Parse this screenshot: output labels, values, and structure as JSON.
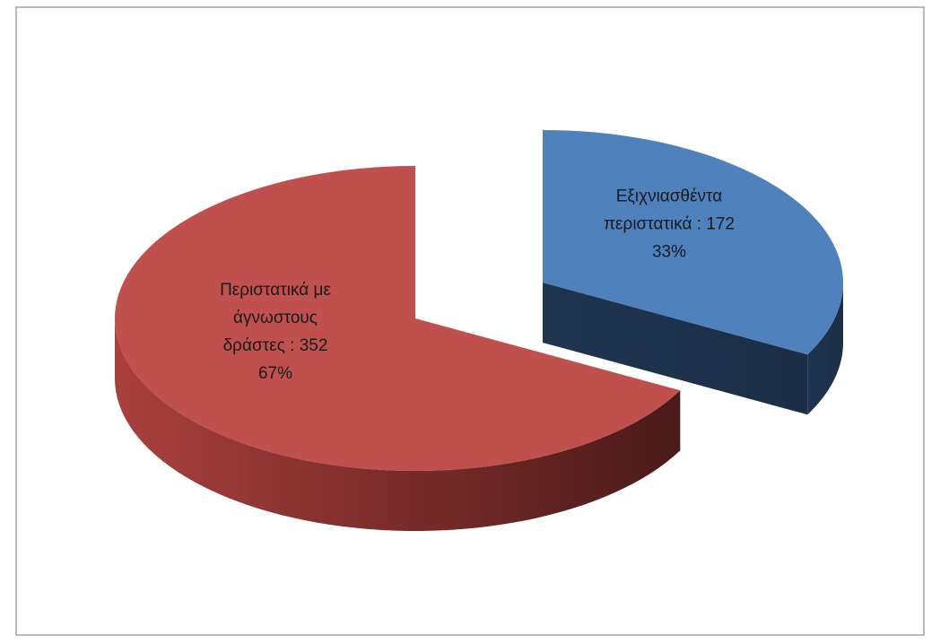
{
  "chart_data": {
    "type": "pie3d",
    "categories": [
      "Εξιχνιασθέντα περιστατικά",
      "Περιστατικά με άγνωστους δράστες"
    ],
    "values": [
      172,
      352
    ],
    "label_separator": " : ",
    "percent_labels": [
      "33%",
      "67%"
    ],
    "colors": [
      "#4f81bd",
      "#c0504d"
    ]
  }
}
